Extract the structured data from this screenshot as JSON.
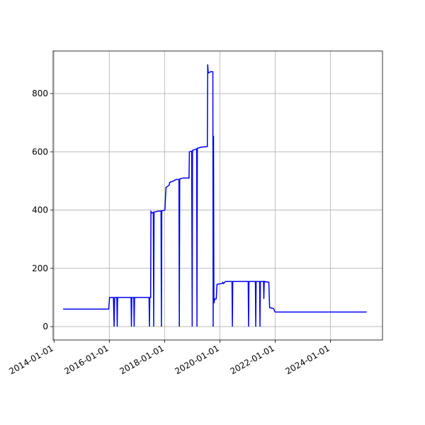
{
  "chart_data": {
    "type": "line",
    "x": [
      "2014-05-01",
      "2015-12-25",
      "2016-01-05",
      "2016-02-25",
      "2016-03-05",
      "2016-03-12",
      "2016-04-10",
      "2016-04-15",
      "2016-04-20",
      "2016-10-15",
      "2016-10-20",
      "2016-10-25",
      "2016-11-20",
      "2016-11-25",
      "2016-11-30",
      "2017-06-10",
      "2017-06-15",
      "2017-06-20",
      "2017-07-01",
      "2017-07-05",
      "2017-07-20",
      "2017-08-05",
      "2017-08-10",
      "2017-08-15",
      "2017-10-01",
      "2017-11-15",
      "2017-11-20",
      "2017-11-25",
      "2018-01-05",
      "2018-01-20",
      "2018-03-01",
      "2018-03-10",
      "2018-05-01",
      "2018-06-01",
      "2018-07-10",
      "2018-07-15",
      "2018-07-20",
      "2018-09-01",
      "2018-11-20",
      "2018-11-25",
      "2018-12-25",
      "2019-01-01",
      "2019-01-05",
      "2019-03-01",
      "2019-03-05",
      "2019-03-10",
      "2019-05-01",
      "2019-07-20",
      "2019-07-25",
      "2019-08-01",
      "2019-09-01",
      "2019-10-01",
      "2019-10-05",
      "2019-10-10",
      "2019-10-15",
      "2019-10-25",
      "2019-11-15",
      "2019-11-25",
      "2020-02-01",
      "2020-02-10",
      "2020-02-20",
      "2020-03-15",
      "2020-06-10",
      "2020-06-15",
      "2020-06-20",
      "2021-01-10",
      "2021-01-15",
      "2021-01-20",
      "2021-04-15",
      "2021-04-20",
      "2021-04-25",
      "2021-06-10",
      "2021-06-15",
      "2021-06-20",
      "2021-08-01",
      "2021-08-05",
      "2021-08-10",
      "2021-10-10",
      "2021-10-20",
      "2021-12-10",
      "2022-01-01",
      "2025-04-25"
    ],
    "series": [
      {
        "color": "#0000ff",
        "values": [
          60,
          60,
          100,
          100,
          0,
          100,
          100,
          0,
          100,
          100,
          0,
          100,
          100,
          0,
          100,
          100,
          0,
          100,
          100,
          395,
          390,
          392,
          0,
          393,
          396,
          397,
          0,
          397,
          400,
          478,
          485,
          495,
          500,
          505,
          505,
          0,
          507,
          510,
          510,
          600,
          602,
          0,
          605,
          610,
          0,
          612,
          616,
          618,
          900,
          870,
          875,
          875,
          0,
          655,
          80,
          95,
          95,
          145,
          148,
          152,
          148,
          155,
          155,
          0,
          155,
          155,
          0,
          155,
          155,
          0,
          155,
          155,
          0,
          155,
          155,
          95,
          155,
          152,
          65,
          62,
          50,
          50
        ]
      }
    ],
    "xlim": [
      "2013-12-20",
      "2025-11-20"
    ],
    "xticks": [
      "2014-01-01",
      "2016-01-01",
      "2018-01-01",
      "2020-01-01",
      "2022-01-01",
      "2024-01-01"
    ],
    "ylim": [
      -46,
      946
    ],
    "yticks": [
      0,
      200,
      400,
      600,
      800
    ],
    "grid": true
  }
}
